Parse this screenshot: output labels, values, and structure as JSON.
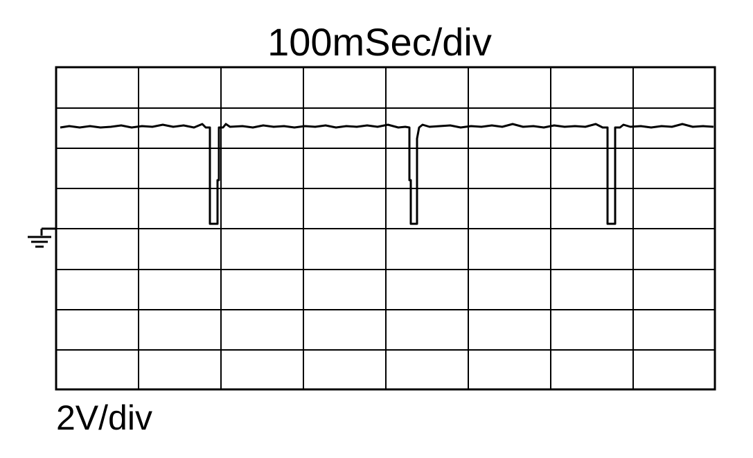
{
  "title": "100mSec/div",
  "vertical_scale": "2V/div"
}
